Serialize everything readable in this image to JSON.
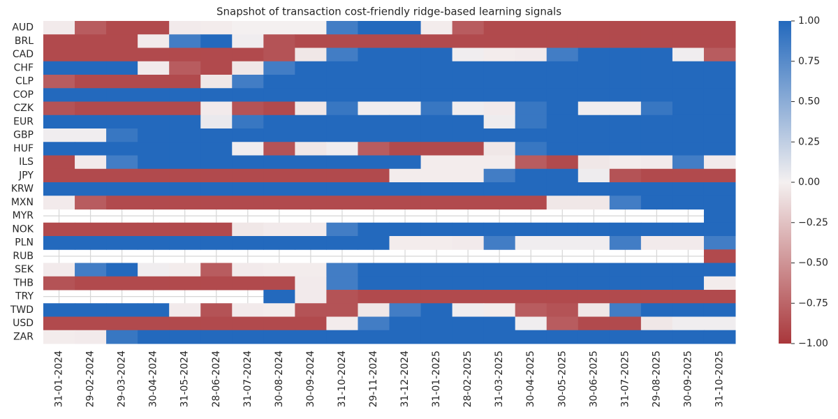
{
  "chart_data": {
    "type": "heatmap",
    "title": "Snapshot of transaction cost-friendly ridge-based learning signals",
    "rows": [
      "AUD",
      "BRL",
      "CAD",
      "CHF",
      "CLP",
      "COP",
      "CZK",
      "EUR",
      "GBP",
      "HUF",
      "ILS",
      "JPY",
      "KRW",
      "MXN",
      "MYR",
      "NOK",
      "PLN",
      "RUB",
      "SEK",
      "THB",
      "TRY",
      "TWD",
      "USD",
      "ZAR"
    ],
    "columns": [
      "31-01-2024",
      "29-02-2024",
      "29-03-2024",
      "30-04-2024",
      "31-05-2024",
      "28-06-2024",
      "31-07-2024",
      "30-08-2024",
      "30-09-2024",
      "31-10-2024",
      "29-11-2024",
      "31-12-2024",
      "31-01-2025",
      "28-02-2025",
      "31-03-2025",
      "30-04-2025",
      "30-05-2025",
      "30-06-2025",
      "31-07-2025",
      "29-08-2025",
      "30-09-2025",
      "31-10-2025"
    ],
    "values": [
      [
        -0.03,
        -0.8,
        -0.9,
        -0.9,
        -0.03,
        -0.02,
        0,
        0,
        0,
        0.85,
        1,
        1,
        -0.02,
        -0.8,
        -0.9,
        -0.9,
        -0.9,
        -0.9,
        -0.9,
        -0.9,
        -0.9,
        -0.9
      ],
      [
        -0.9,
        -0.9,
        -0.9,
        -0.03,
        0.85,
        1,
        0.02,
        -0.85,
        -0.9,
        -0.9,
        -0.9,
        -0.9,
        -0.9,
        -0.9,
        -0.9,
        -0.9,
        -0.9,
        -0.9,
        -0.9,
        -0.9,
        -0.9,
        -0.9
      ],
      [
        -0.9,
        -0.9,
        -0.9,
        -0.9,
        -0.9,
        -0.9,
        -0.9,
        -0.85,
        -0.05,
        0.85,
        1,
        1,
        1,
        0.02,
        -0.02,
        -0.03,
        0.85,
        1,
        1,
        1,
        0.02,
        -0.8
      ],
      [
        1,
        1,
        1,
        -0.03,
        -0.8,
        -0.9,
        -0.05,
        0.85,
        1,
        1,
        1,
        1,
        1,
        1,
        1,
        1,
        1,
        1,
        1,
        1,
        1,
        1
      ],
      [
        -0.8,
        -0.9,
        -0.9,
        -0.9,
        -0.9,
        -0.05,
        0.85,
        1,
        1,
        1,
        1,
        1,
        1,
        1,
        1,
        1,
        1,
        1,
        1,
        1,
        1,
        1
      ],
      [
        1,
        1,
        1,
        1,
        1,
        1,
        1,
        1,
        1,
        1,
        1,
        1,
        1,
        1,
        1,
        1,
        1,
        1,
        1,
        1,
        1,
        1
      ],
      [
        -0.85,
        -0.9,
        -0.9,
        -0.9,
        -0.9,
        -0.03,
        -0.85,
        -0.9,
        -0.05,
        0.9,
        0.02,
        0.02,
        0.9,
        0.02,
        -0.03,
        0.9,
        1,
        0.02,
        0.02,
        0.9,
        1,
        1
      ],
      [
        1,
        1,
        1,
        1,
        1,
        0.05,
        0.9,
        1,
        1,
        1,
        1,
        1,
        1,
        1,
        0.03,
        0.9,
        1,
        1,
        1,
        1,
        1,
        1
      ],
      [
        0.02,
        0.02,
        0.9,
        1,
        1,
        1,
        1,
        1,
        1,
        1,
        1,
        1,
        1,
        1,
        1,
        1,
        1,
        1,
        1,
        1,
        1,
        1
      ],
      [
        1,
        1,
        1,
        1,
        1,
        1,
        0.02,
        -0.85,
        -0.05,
        0.02,
        -0.8,
        -0.9,
        -0.9,
        -0.9,
        -0.05,
        0.9,
        1,
        1,
        1,
        1,
        1,
        1
      ],
      [
        -0.9,
        -0.03,
        0.85,
        1,
        1,
        1,
        1,
        1,
        1,
        1,
        1,
        1,
        -0.02,
        -0.02,
        -0.02,
        -0.8,
        -0.9,
        -0.05,
        -0.02,
        -0.03,
        0.85,
        -0.03
      ],
      [
        -0.9,
        -0.9,
        -0.9,
        -0.9,
        -0.9,
        -0.9,
        -0.9,
        -0.9,
        -0.9,
        -0.9,
        -0.9,
        -0.02,
        -0.02,
        -0.02,
        0.85,
        1,
        1,
        0.03,
        -0.85,
        -0.9,
        -0.9,
        -0.9
      ],
      [
        1,
        1,
        1,
        1,
        1,
        1,
        1,
        1,
        1,
        1,
        1,
        1,
        1,
        1,
        1,
        1,
        1,
        1,
        1,
        1,
        1,
        1
      ],
      [
        -0.03,
        -0.8,
        -0.9,
        -0.9,
        -0.9,
        -0.9,
        -0.9,
        -0.9,
        -0.9,
        -0.9,
        -0.9,
        -0.9,
        -0.9,
        -0.9,
        -0.9,
        -0.9,
        -0.05,
        -0.05,
        0.85,
        1,
        1,
        1
      ],
      [
        null,
        null,
        null,
        null,
        null,
        null,
        null,
        null,
        null,
        null,
        null,
        null,
        null,
        null,
        null,
        null,
        null,
        null,
        null,
        null,
        null,
        1
      ],
      [
        -0.9,
        -0.9,
        -0.9,
        -0.9,
        -0.9,
        -0.9,
        -0.05,
        -0.03,
        -0.03,
        0.85,
        1,
        1,
        1,
        1,
        1,
        1,
        1,
        1,
        1,
        1,
        1,
        1
      ],
      [
        1,
        1,
        1,
        1,
        1,
        1,
        1,
        1,
        1,
        1,
        1,
        -0.02,
        -0.02,
        -0.03,
        0.85,
        0.02,
        0.02,
        0.02,
        0.85,
        -0.03,
        -0.03,
        0.85
      ],
      [
        null,
        null,
        null,
        null,
        null,
        null,
        null,
        null,
        null,
        null,
        null,
        null,
        null,
        null,
        null,
        null,
        null,
        null,
        null,
        null,
        null,
        -0.9
      ],
      [
        -0.03,
        0.85,
        1,
        0.02,
        -0.02,
        -0.8,
        -0.03,
        -0.02,
        -0.02,
        0.85,
        1,
        1,
        1,
        1,
        1,
        1,
        1,
        1,
        1,
        1,
        1,
        1
      ],
      [
        -0.85,
        -0.9,
        -0.9,
        -0.9,
        -0.9,
        -0.9,
        -0.9,
        -0.9,
        -0.03,
        0.85,
        1,
        1,
        1,
        1,
        1,
        1,
        1,
        1,
        1,
        1,
        1,
        -0.02
      ],
      [
        null,
        null,
        null,
        null,
        null,
        null,
        null,
        1,
        -0.03,
        -0.85,
        -0.9,
        -0.9,
        -0.9,
        -0.9,
        -0.9,
        -0.9,
        -0.9,
        -0.9,
        -0.9,
        -0.9,
        -0.9,
        -0.9
      ],
      [
        1,
        1,
        1,
        1,
        -0.03,
        -0.85,
        -0.03,
        -0.02,
        -0.85,
        -0.85,
        -0.05,
        0.85,
        1,
        0.02,
        -0.02,
        -0.8,
        -0.85,
        -0.05,
        0.85,
        1,
        1,
        1
      ],
      [
        -0.9,
        -0.9,
        -0.9,
        -0.9,
        -0.9,
        -0.9,
        -0.9,
        -0.9,
        -0.9,
        -0.02,
        0.85,
        1,
        1,
        1,
        1,
        0.02,
        -0.8,
        -0.9,
        -0.9,
        -0.05,
        0.02,
        0.02
      ],
      [
        -0.02,
        -0.03,
        0.9,
        1,
        1,
        1,
        1,
        1,
        1,
        1,
        1,
        1,
        1,
        1,
        1,
        1,
        1,
        1,
        1,
        1,
        1,
        1
      ]
    ],
    "vlim": [
      -1,
      1
    ],
    "colormap": [
      "#a9373b",
      "#f4f0f0",
      "#2369bd"
    ],
    "cticks": [
      {
        "value": -1,
        "label": "−1.00"
      },
      {
        "value": -0.75,
        "label": "−0.75"
      },
      {
        "value": -0.5,
        "label": "−0.50"
      },
      {
        "value": -0.25,
        "label": "−0.25"
      },
      {
        "value": 0,
        "label": "0.00"
      },
      {
        "value": 0.25,
        "label": "0.25"
      },
      {
        "value": 0.5,
        "label": "0.50"
      },
      {
        "value": 0.75,
        "label": "0.75"
      },
      {
        "value": 1,
        "label": "1.00"
      }
    ],
    "grid": true
  }
}
